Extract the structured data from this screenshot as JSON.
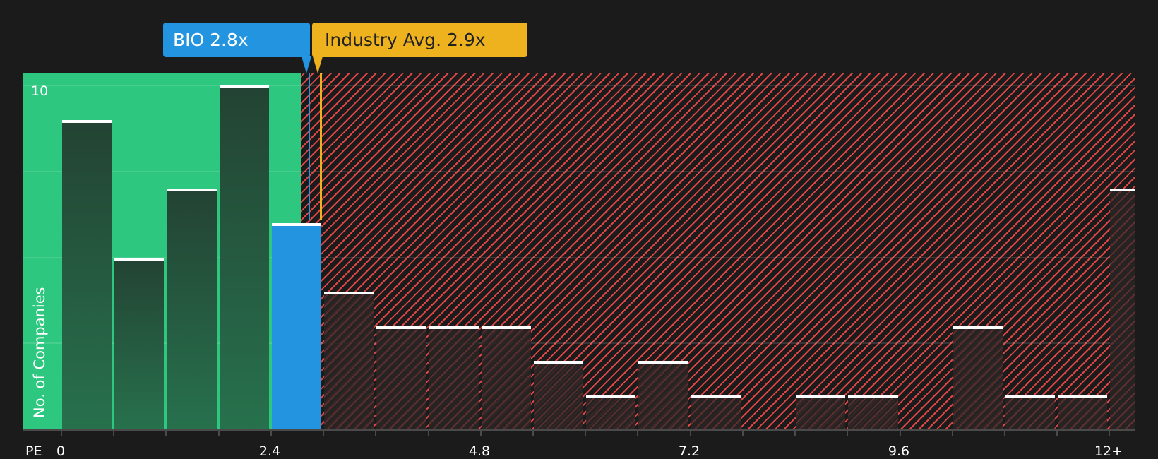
{
  "callouts": {
    "company": {
      "label": "BIO 2.8x",
      "color": "#2394e0"
    },
    "industry": {
      "label": "Industry Avg. 2.9x",
      "color": "#edb21d"
    }
  },
  "axes": {
    "y_label": "No. of Companies",
    "y_tick_label": "10",
    "x_name": "PE",
    "x_ticks": [
      "0",
      "2.4",
      "4.8",
      "7.2",
      "9.6",
      "12+"
    ]
  },
  "colors": {
    "fair_zone": "#2ec77f",
    "overvalued_hatch": "#e04646",
    "background": "#1b1b1b",
    "highlight_bar": "#2394e0",
    "industry_line": "#edb21d"
  },
  "chart_data": {
    "type": "bar",
    "title": "",
    "xlabel": "PE",
    "ylabel": "No. of Companies",
    "ylim": [
      0,
      10.4
    ],
    "y_gridlines": [
      2.5,
      5,
      7.5,
      10
    ],
    "x_tick_labels": [
      "0",
      "2.4",
      "4.8",
      "7.2",
      "9.6",
      "12+"
    ],
    "bin_width": 0.6,
    "categories": [
      "0-0.6",
      "0.6-1.2",
      "1.2-1.8",
      "1.8-2.4",
      "2.4-3.0",
      "3.0-3.6",
      "3.6-4.2",
      "4.2-4.8",
      "4.8-5.4",
      "5.4-6.0",
      "6.0-6.6",
      "6.6-7.2",
      "7.2-7.8",
      "7.8-8.4",
      "8.4-9.0",
      "9.0-9.6",
      "9.6-10.2",
      "10.2-10.8",
      "10.8-11.4",
      "11.4-12.0",
      "12+"
    ],
    "values": [
      9,
      5,
      7,
      10,
      6,
      4,
      3,
      3,
      3,
      2,
      1,
      2,
      1,
      0,
      1,
      1,
      0,
      3,
      1,
      1,
      7
    ],
    "highlight_index": 4,
    "annotations": [
      {
        "label": "BIO 2.8x",
        "x": 2.8
      },
      {
        "label": "Industry Avg. 2.9x",
        "x": 2.9
      }
    ],
    "zones": [
      {
        "name": "fair",
        "from": 0,
        "to": 2.75,
        "color": "#2ec77f"
      },
      {
        "name": "overvalued",
        "from": 2.75,
        "to": 12.8,
        "color": "#e04646"
      }
    ],
    "grid": true,
    "legend": null
  }
}
